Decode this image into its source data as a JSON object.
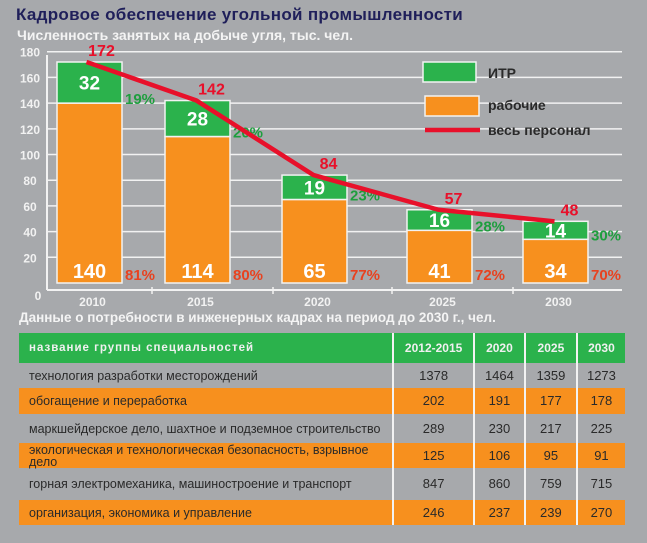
{
  "title": "Кадровое обеспечение угольной промышленности",
  "chart_data": {
    "type": "bar",
    "stacked": true,
    "title": "Численность занятых на добыче угля, тыс. чел.",
    "categories": [
      "2010",
      "2015",
      "2020",
      "2025",
      "2030"
    ],
    "ylim": [
      0,
      180
    ],
    "yticks": [
      "0",
      "20",
      "40",
      "60",
      "80",
      "100",
      "120",
      "140",
      "160",
      "180"
    ],
    "grid": true,
    "legend_placement": "top-right",
    "series": [
      {
        "name": "рабочие",
        "type": "bar",
        "color": "#f7901e",
        "values": [
          140,
          114,
          65,
          41,
          34
        ],
        "percent_labels": [
          "81%",
          "80%",
          "77%",
          "72%",
          "70%"
        ],
        "label_color": "#e8421f"
      },
      {
        "name": "ИТР",
        "type": "bar",
        "color": "#2bb24c",
        "values": [
          32,
          28,
          19,
          16,
          14
        ],
        "percent_labels": [
          "19%",
          "20%",
          "23%",
          "28%",
          "30%"
        ],
        "label_color": "#1e9e3e"
      },
      {
        "name": "весь персонал",
        "type": "line",
        "color": "#e8102a",
        "values": [
          172,
          142,
          84,
          57,
          48
        ]
      }
    ]
  },
  "table": {
    "title": "Данные о потребности в инженерных кадрах на период до 2030 г., чел.",
    "headers": [
      "название группы специальностей",
      "2012-2015",
      "2020",
      "2025",
      "2030"
    ],
    "rows": [
      {
        "name": "технология разработки месторождений",
        "values": [
          "1378",
          "1464",
          "1359",
          "1273"
        ]
      },
      {
        "name": "обогащение и переработка",
        "values": [
          "202",
          "191",
          "177",
          "178"
        ]
      },
      {
        "name": "маркшейдерское дело, шахтное и подземное строительство",
        "values": [
          "289",
          "230",
          "217",
          "225"
        ]
      },
      {
        "name": "экологическая и технологическая безопасность, взрывное дело",
        "values": [
          "125",
          "106",
          "95",
          "91"
        ]
      },
      {
        "name": "горная электромеханика, машиностроение и транспорт",
        "values": [
          "847",
          "860",
          "759",
          "715"
        ]
      },
      {
        "name": "организация, экономика и управление",
        "values": [
          "246",
          "237",
          "239",
          "270"
        ]
      }
    ]
  }
}
